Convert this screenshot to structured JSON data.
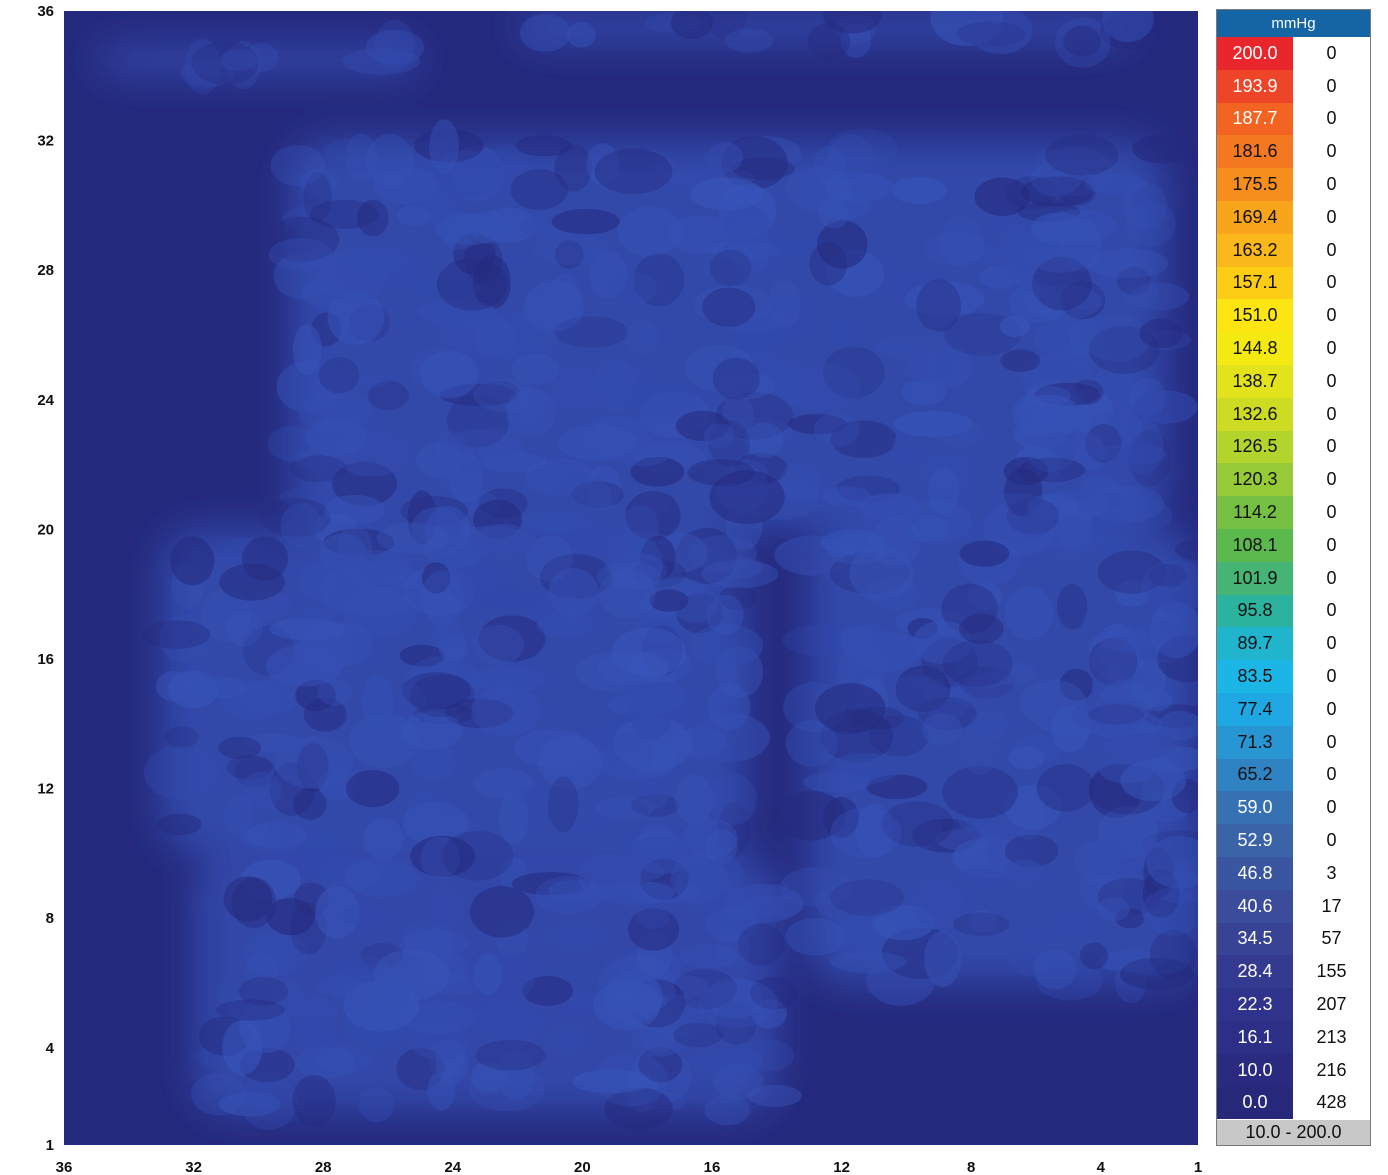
{
  "chart_data": {
    "type": "heatmap",
    "title": "",
    "xlabel": "",
    "ylabel": "",
    "x_ticks": [
      "36",
      "32",
      "28",
      "24",
      "20",
      "16",
      "12",
      "8",
      "4",
      "1"
    ],
    "y_ticks": [
      "36",
      "32",
      "28",
      "24",
      "20",
      "16",
      "12",
      "8",
      "4",
      "1"
    ],
    "xlim": [
      36,
      1
    ],
    "ylim": [
      1,
      36
    ],
    "grid": false,
    "legend_position": "right",
    "legend": {
      "unit": "mmHg",
      "range_label": "10.0 - 200.0",
      "rows": [
        {
          "value": "200.0",
          "count": "0",
          "color": "#e8262b",
          "text": "#ffffff"
        },
        {
          "value": "193.9",
          "count": "0",
          "color": "#ee4528",
          "text": "#ffffff"
        },
        {
          "value": "187.7",
          "count": "0",
          "color": "#f36422",
          "text": "#ffffff"
        },
        {
          "value": "181.6",
          "count": "0",
          "color": "#f4781f",
          "text": "#111111"
        },
        {
          "value": "175.5",
          "count": "0",
          "color": "#f68e1e",
          "text": "#111111"
        },
        {
          "value": "169.4",
          "count": "0",
          "color": "#f8a51c",
          "text": "#111111"
        },
        {
          "value": "163.2",
          "count": "0",
          "color": "#fab81a",
          "text": "#111111"
        },
        {
          "value": "157.1",
          "count": "0",
          "color": "#fdcc14",
          "text": "#111111"
        },
        {
          "value": "151.0",
          "count": "0",
          "color": "#fde512",
          "text": "#111111"
        },
        {
          "value": "144.8",
          "count": "0",
          "color": "#f4ea12",
          "text": "#111111"
        },
        {
          "value": "138.7",
          "count": "0",
          "color": "#e2e31a",
          "text": "#111111"
        },
        {
          "value": "132.6",
          "count": "0",
          "color": "#cddc22",
          "text": "#111111"
        },
        {
          "value": "126.5",
          "count": "0",
          "color": "#b3d42c",
          "text": "#111111"
        },
        {
          "value": "120.3",
          "count": "0",
          "color": "#96ca38",
          "text": "#111111"
        },
        {
          "value": "114.2",
          "count": "0",
          "color": "#75c043",
          "text": "#111111"
        },
        {
          "value": "108.1",
          "count": "0",
          "color": "#5bb84c",
          "text": "#111111"
        },
        {
          "value": "101.9",
          "count": "0",
          "color": "#45b474",
          "text": "#111111"
        },
        {
          "value": "95.8",
          "count": "0",
          "color": "#2bb3a0",
          "text": "#111111"
        },
        {
          "value": "89.7",
          "count": "0",
          "color": "#20b5cd",
          "text": "#111111"
        },
        {
          "value": "83.5",
          "count": "0",
          "color": "#1cb6e6",
          "text": "#111111"
        },
        {
          "value": "77.4",
          "count": "0",
          "color": "#1ea7e2",
          "text": "#111111"
        },
        {
          "value": "71.3",
          "count": "0",
          "color": "#2796d3",
          "text": "#111111"
        },
        {
          "value": "65.2",
          "count": "0",
          "color": "#3083c2",
          "text": "#111111"
        },
        {
          "value": "59.0",
          "count": "0",
          "color": "#3671b3",
          "text": "#ffffff"
        },
        {
          "value": "52.9",
          "count": "0",
          "color": "#3a63a8",
          "text": "#ffffff"
        },
        {
          "value": "46.8",
          "count": "3",
          "color": "#3a56a0",
          "text": "#ffffff"
        },
        {
          "value": "40.6",
          "count": "17",
          "color": "#3a4c9a",
          "text": "#ffffff"
        },
        {
          "value": "34.5",
          "count": "57",
          "color": "#384395",
          "text": "#ffffff"
        },
        {
          "value": "28.4",
          "count": "155",
          "color": "#343a90",
          "text": "#ffffff"
        },
        {
          "value": "22.3",
          "count": "207",
          "color": "#30338b",
          "text": "#ffffff"
        },
        {
          "value": "16.1",
          "count": "213",
          "color": "#2d2e86",
          "text": "#ffffff"
        },
        {
          "value": "10.0",
          "count": "216",
          "color": "#2a2b80",
          "text": "#ffffff"
        },
        {
          "value": "0.0",
          "count": "428",
          "color": "#27287a",
          "text": "#ffffff"
        }
      ]
    },
    "colors": {
      "background": "#252a7e",
      "low": "#2d3494",
      "mid": "#3146a8",
      "high": "#3a58be"
    },
    "regions": [
      {
        "x": [
          35,
          25
        ],
        "y": [
          34,
          35
        ],
        "level": 0.45
      },
      {
        "x": [
          22,
          3
        ],
        "y": [
          35,
          36
        ],
        "level": 0.5
      },
      {
        "x": [
          29,
          2
        ],
        "y": [
          20,
          32
        ],
        "level": 0.55
      },
      {
        "x": [
          33,
          15
        ],
        "y": [
          10,
          20
        ],
        "level": 0.55
      },
      {
        "x": [
          13,
          1
        ],
        "y": [
          6,
          20
        ],
        "level": 0.55
      },
      {
        "x": [
          32,
          14
        ],
        "y": [
          2,
          10
        ],
        "level": 0.5
      }
    ]
  }
}
